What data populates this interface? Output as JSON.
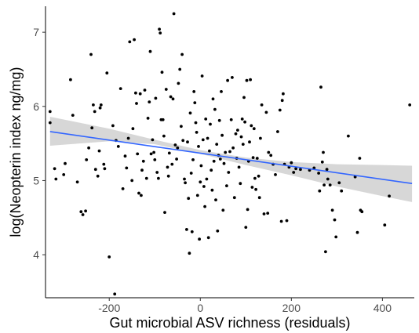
{
  "chart_data": {
    "type": "scatter",
    "xlabel": "Gut microbial ASV richness (residuals)",
    "ylabel": "log(Neopterin index ng/mg)",
    "xlim": [
      -340,
      470
    ],
    "ylim": [
      3.42,
      7.35
    ],
    "x_ticks": [
      -200,
      0,
      200,
      400
    ],
    "y_ticks": [
      4,
      5,
      6,
      7
    ],
    "x_tick_labels": [
      "-200",
      "0",
      "200",
      "400"
    ],
    "y_tick_labels": [
      "4",
      "5",
      "6",
      "7"
    ],
    "grid": false,
    "legend": "none",
    "point_color": "#000000",
    "fit": {
      "type": "linear",
      "x_range": [
        -330,
        465
      ],
      "y_at_start": 5.66,
      "y_at_end": 4.96,
      "color": "#3366ff",
      "band_color": "#d3d3d3",
      "band_upper": [
        [
          -330,
          5.86
        ],
        [
          -200,
          5.7
        ],
        [
          -100,
          5.55
        ],
        [
          0,
          5.41
        ],
        [
          100,
          5.31
        ],
        [
          200,
          5.25
        ],
        [
          300,
          5.22
        ],
        [
          400,
          5.21
        ],
        [
          465,
          5.2
        ]
      ],
      "band_lower": [
        [
          -330,
          5.47
        ],
        [
          -200,
          5.53
        ],
        [
          -100,
          5.49
        ],
        [
          0,
          5.36
        ],
        [
          100,
          5.21
        ],
        [
          200,
          5.07
        ],
        [
          300,
          4.92
        ],
        [
          400,
          4.79
        ],
        [
          465,
          4.71
        ]
      ]
    },
    "points": [
      [
        -330,
        5.93
      ],
      [
        -330,
        5.78
      ],
      [
        -320,
        5.16
      ],
      [
        -317,
        5.02
      ],
      [
        -300,
        5.08
      ],
      [
        -297,
        5.23
      ],
      [
        -285,
        6.36
      ],
      [
        -280,
        5.88
      ],
      [
        -270,
        4.98
      ],
      [
        -262,
        4.58
      ],
      [
        -258,
        4.54
      ],
      [
        -252,
        4.59
      ],
      [
        -250,
        5.28
      ],
      [
        -245,
        5.44
      ],
      [
        -240,
        6.7
      ],
      [
        -238,
        5.71
      ],
      [
        -235,
        6.02
      ],
      [
        -232,
        5.93
      ],
      [
        -230,
        5.15
      ],
      [
        -225,
        5.06
      ],
      [
        -222,
        5.4
      ],
      [
        -220,
        5.98
      ],
      [
        -218,
        6.02
      ],
      [
        -212,
        5.22
      ],
      [
        -210,
        5.16
      ],
      [
        -205,
        6.45
      ],
      [
        -200,
        3.97
      ],
      [
        -192,
        5.74
      ],
      [
        -188,
        3.47
      ],
      [
        -185,
        5.54
      ],
      [
        -180,
        5.46
      ],
      [
        -175,
        6.24
      ],
      [
        -170,
        4.89
      ],
      [
        -165,
        5.33
      ],
      [
        -162,
        5.17
      ],
      [
        -158,
        5.57
      ],
      [
        -155,
        6.87
      ],
      [
        -150,
        5.0
      ],
      [
        -148,
        5.7
      ],
      [
        -145,
        6.9
      ],
      [
        -142,
        6.18
      ],
      [
        -140,
        6.04
      ],
      [
        -138,
        5.36
      ],
      [
        -135,
        4.83
      ],
      [
        -132,
        6.17
      ],
      [
        -130,
        4.8
      ],
      [
        -128,
        5.14
      ],
      [
        -125,
        5.26
      ],
      [
        -122,
        6.22
      ],
      [
        -118,
        5.03
      ],
      [
        -115,
        5.84
      ],
      [
        -112,
        6.06
      ],
      [
        -110,
        6.74
      ],
      [
        -108,
        5.36
      ],
      [
        -105,
        5.55
      ],
      [
        -102,
        5.38
      ],
      [
        -100,
        5.28
      ],
      [
        -98,
        6.11
      ],
      [
        -95,
        5.11
      ],
      [
        -92,
        5.03
      ],
      [
        -90,
        7.04
      ],
      [
        -88,
        6.99
      ],
      [
        -86,
        5.82
      ],
      [
        -84,
        6.46
      ],
      [
        -82,
        5.82
      ],
      [
        -80,
        5.6
      ],
      [
        -78,
        4.57
      ],
      [
        -75,
        6.23
      ],
      [
        -72,
        5.18
      ],
      [
        -70,
        5.06
      ],
      [
        -68,
        5.37
      ],
      [
        -65,
        6.13
      ],
      [
        -62,
        5.22
      ],
      [
        -60,
        6.1
      ],
      [
        -58,
        7.25
      ],
      [
        -55,
        5.48
      ],
      [
        -52,
        5.29
      ],
      [
        -50,
        5.44
      ],
      [
        -48,
        6.31
      ],
      [
        -45,
        6.5
      ],
      [
        -42,
        5.73
      ],
      [
        -40,
        6.7
      ],
      [
        -38,
        5.54
      ],
      [
        -35,
        5.02
      ],
      [
        -33,
        4.97
      ],
      [
        -30,
        4.34
      ],
      [
        -28,
        5.52
      ],
      [
        -26,
        4.76
      ],
      [
        -24,
        4.02
      ],
      [
        -22,
        5.91
      ],
      [
        -20,
        5.1
      ],
      [
        -18,
        4.31
      ],
      [
        -16,
        5.28
      ],
      [
        -14,
        6.2
      ],
      [
        -12,
        6.05
      ],
      [
        -10,
        5.78
      ],
      [
        -8,
        5.65
      ],
      [
        -6,
        4.8
      ],
      [
        -4,
        5.46
      ],
      [
        -2,
        4.21
      ],
      [
        0,
        4.98
      ],
      [
        2,
        5.2
      ],
      [
        4,
        6.41
      ],
      [
        6,
        5.55
      ],
      [
        8,
        4.92
      ],
      [
        10,
        4.65
      ],
      [
        12,
        5.83
      ],
      [
        14,
        5.02
      ],
      [
        16,
        5.57
      ],
      [
        18,
        4.23
      ],
      [
        20,
        5.4
      ],
      [
        22,
        5.76
      ],
      [
        24,
        5.14
      ],
      [
        26,
        4.87
      ],
      [
        28,
        6.1
      ],
      [
        30,
        5.26
      ],
      [
        32,
        5.96
      ],
      [
        34,
        4.74
      ],
      [
        36,
        5.49
      ],
      [
        38,
        4.32
      ],
      [
        40,
        5.34
      ],
      [
        42,
        5.81
      ],
      [
        44,
        5.29
      ],
      [
        46,
        6.2
      ],
      [
        48,
        5.61
      ],
      [
        50,
        4.6
      ],
      [
        52,
        5.23
      ],
      [
        55,
        5.38
      ],
      [
        58,
        4.93
      ],
      [
        60,
        6.35
      ],
      [
        62,
        5.11
      ],
      [
        65,
        5.39
      ],
      [
        68,
        5.82
      ],
      [
        70,
        6.39
      ],
      [
        72,
        5.44
      ],
      [
        75,
        4.77
      ],
      [
        78,
        5.63
      ],
      [
        80,
        5.3
      ],
      [
        82,
        5.68
      ],
      [
        85,
        5.18
      ],
      [
        88,
        4.96
      ],
      [
        90,
        5.59
      ],
      [
        92,
        5.83
      ],
      [
        94,
        5.49
      ],
      [
        96,
        6.12
      ],
      [
        98,
        5.79
      ],
      [
        100,
        4.37
      ],
      [
        102,
        6.35
      ],
      [
        104,
        4.61
      ],
      [
        106,
        5.26
      ],
      [
        108,
        5.52
      ],
      [
        110,
        6.36
      ],
      [
        112,
        5.74
      ],
      [
        114,
        4.91
      ],
      [
        116,
        5.31
      ],
      [
        118,
        5.7
      ],
      [
        120,
        5.03
      ],
      [
        122,
        4.88
      ],
      [
        125,
        5.3
      ],
      [
        128,
        5.06
      ],
      [
        130,
        4.77
      ],
      [
        132,
        5.57
      ],
      [
        135,
        6.02
      ],
      [
        140,
        4.55
      ],
      [
        145,
        5.92
      ],
      [
        148,
        4.56
      ],
      [
        150,
        5.38
      ],
      [
        155,
        5.34
      ],
      [
        160,
        5.22
      ],
      [
        165,
        5.08
      ],
      [
        170,
        5.66
      ],
      [
        175,
        5.95
      ],
      [
        178,
        4.45
      ],
      [
        180,
        6.08
      ],
      [
        182,
        6.17
      ],
      [
        185,
        5.22
      ],
      [
        190,
        4.46
      ],
      [
        195,
        5.18
      ],
      [
        200,
        5.24
      ],
      [
        205,
        5.11
      ],
      [
        210,
        5.16
      ],
      [
        220,
        5.15
      ],
      [
        240,
        5.14
      ],
      [
        250,
        5.17
      ],
      [
        260,
        5.1
      ],
      [
        262,
        4.86
      ],
      [
        265,
        6.26
      ],
      [
        268,
        5.25
      ],
      [
        270,
        5.38
      ],
      [
        272,
        4.94
      ],
      [
        275,
        4.04
      ],
      [
        278,
        5.15
      ],
      [
        280,
        5.02
      ],
      [
        285,
        4.94
      ],
      [
        290,
        4.6
      ],
      [
        295,
        4.47
      ],
      [
        298,
        4.24
      ],
      [
        305,
        4.97
      ],
      [
        310,
        4.86
      ],
      [
        325,
        5.6
      ],
      [
        340,
        5.05
      ],
      [
        345,
        4.3
      ],
      [
        350,
        5.3
      ],
      [
        352,
        4.6
      ],
      [
        355,
        4.58
      ],
      [
        405,
        4.4
      ],
      [
        415,
        4.79
      ],
      [
        460,
        6.02
      ]
    ]
  }
}
